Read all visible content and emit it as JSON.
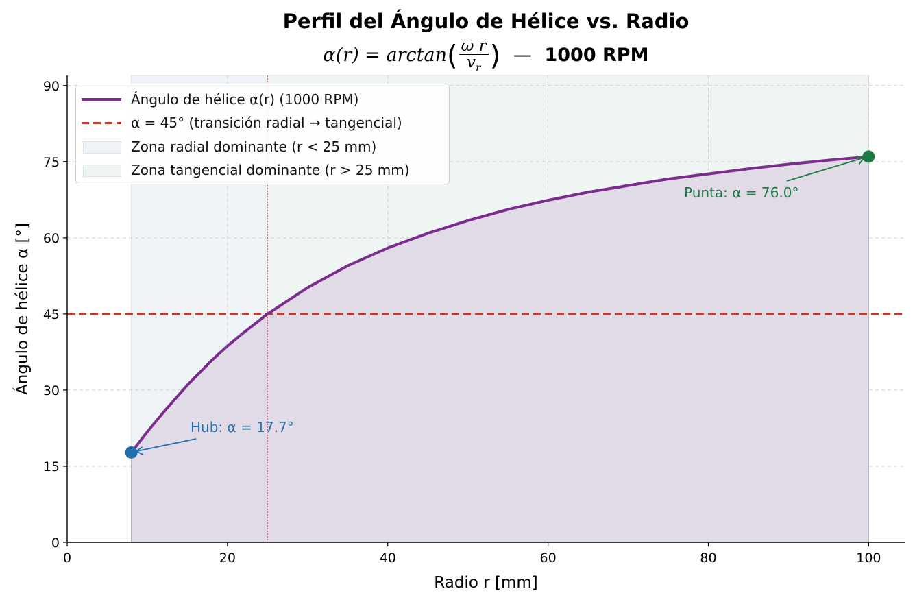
{
  "title": {
    "main": "Perfil del Ángulo de Hélice vs. Radio",
    "formula_lhs": "α(r) = arctan",
    "formula_num": "ω r",
    "formula_den": "v",
    "formula_den_sub": "r",
    "separator": "—",
    "rpm": "1000 RPM"
  },
  "legend": {
    "curve": "Ángulo de hélice α(r)  (1000 RPM)",
    "line45": "α = 45° (transición radial → tangencial)",
    "zone_radial": "Zona radial dominante (r < 25 mm)",
    "zone_tangential": "Zona tangencial dominante (r > 25 mm)"
  },
  "colors": {
    "curve": "#7b2d8e",
    "fill": "#dfd8e6",
    "line45": "#c0392b",
    "hub": "#1f6fad",
    "tip": "#1a7a45",
    "zone_radial": "#eef3f7",
    "zone_tangential": "#eef5f2",
    "grid": "#d0d0d0"
  },
  "chart_data": {
    "type": "line",
    "xlabel": "Radio r  [mm]",
    "ylabel": "Ángulo de hélice α  [°]",
    "xlim": [
      0,
      104.5
    ],
    "ylim": [
      0,
      92
    ],
    "xticks": [
      0,
      20,
      40,
      60,
      80,
      100
    ],
    "yticks": [
      0,
      15,
      30,
      45,
      60,
      75,
      90
    ],
    "grid": true,
    "legend_position": "top-left",
    "series": [
      {
        "name": "Ángulo de hélice α(r)  (1000 RPM)",
        "x": [
          8,
          10,
          12,
          15,
          18,
          20,
          22,
          25,
          30,
          35,
          40,
          45,
          50,
          55,
          60,
          65,
          70,
          75,
          80,
          85,
          90,
          95,
          100
        ],
        "y": [
          17.7,
          21.8,
          25.6,
          31.0,
          35.8,
          38.7,
          41.3,
          45.0,
          50.2,
          54.5,
          58.0,
          60.9,
          63.4,
          65.6,
          67.4,
          69.0,
          70.3,
          71.6,
          72.6,
          73.6,
          74.5,
          75.3,
          76.0
        ]
      }
    ],
    "reference_line": {
      "y": 45
    },
    "transition_x": 25,
    "shaded_zones": [
      {
        "x_range": [
          8,
          25
        ]
      },
      {
        "x_range": [
          25,
          100
        ]
      }
    ],
    "points": [
      {
        "key": "hub",
        "x": 8,
        "y": 17.7,
        "label": "Hub: α = 17.7°"
      },
      {
        "key": "tip",
        "x": 100,
        "y": 76.0,
        "label": "Punta: α = 76.0°"
      }
    ]
  }
}
